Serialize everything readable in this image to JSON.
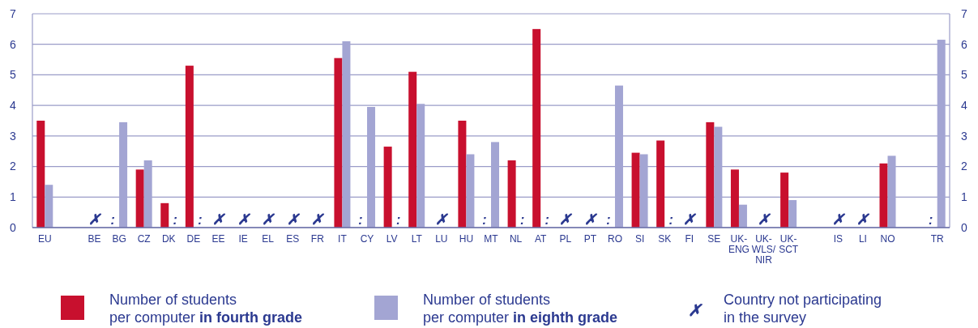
{
  "chart_data": {
    "type": "bar",
    "categories": [
      "EU",
      null,
      "BE",
      "BG",
      "CZ",
      "DK",
      "DE",
      "EE",
      "IE",
      "EL",
      "ES",
      "FR",
      "IT",
      "CY",
      "LV",
      "LT",
      "LU",
      "HU",
      "MT",
      "NL",
      "AT",
      "PL",
      "PT",
      "RO",
      "SI",
      "SK",
      "FI",
      "SE",
      "UK-ENG",
      "UK-WLS/NIR",
      "UK-SCT",
      null,
      "IS",
      "LI",
      "NO",
      null,
      "TR"
    ],
    "series": [
      {
        "name": "Number of students per computer in fourth grade",
        "color": "#c8102e",
        "values": [
          3.5,
          null,
          null,
          null,
          1.9,
          0.8,
          5.3,
          null,
          null,
          null,
          null,
          null,
          5.55,
          null,
          2.65,
          5.1,
          null,
          3.5,
          null,
          2.2,
          6.5,
          null,
          null,
          null,
          2.45,
          2.85,
          null,
          3.45,
          1.9,
          null,
          1.8,
          null,
          null,
          null,
          2.1,
          null,
          null
        ]
      },
      {
        "name": "Number of students per computer in eighth grade",
        "color": "#a3a5d3",
        "values": [
          1.4,
          null,
          null,
          3.45,
          2.2,
          null,
          null,
          null,
          null,
          null,
          null,
          null,
          6.1,
          3.95,
          null,
          4.05,
          null,
          2.4,
          2.8,
          null,
          null,
          null,
          null,
          4.65,
          2.4,
          null,
          null,
          3.3,
          0.75,
          null,
          0.9,
          null,
          null,
          null,
          2.35,
          null,
          6.15
        ]
      }
    ],
    "ylim": [
      0,
      7
    ],
    "yticks": [
      0,
      1,
      2,
      3,
      4,
      5,
      6,
      7
    ],
    "y2lim": [
      0,
      7
    ],
    "y2ticks": [
      0,
      1,
      2,
      3,
      4,
      5,
      6,
      7
    ],
    "grid": "y",
    "legend": "bottom",
    "annotations": [
      {
        "text": ":",
        "x": "BG",
        "y": 0
      },
      {
        "text": ":",
        "x": "DK",
        "y": 0
      },
      {
        "text": ":",
        "x": "DE",
        "y": 0
      },
      {
        "text": ":",
        "x": "CY",
        "y": 0
      },
      {
        "text": ":",
        "x": "LV",
        "y": 0
      },
      {
        "text": ":",
        "x": "MT",
        "y": 0
      },
      {
        "text": ":",
        "x": "NL",
        "y": 0
      },
      {
        "text": ":",
        "x": "AT",
        "y": 0
      },
      {
        "text": ":",
        "x": "RO",
        "y": 0
      },
      {
        "text": ":",
        "x": "SK",
        "y": 0
      },
      {
        "text": ":",
        "x": "TR",
        "y": 0
      },
      "✗",
      "✗",
      "✗",
      "✗",
      "✗",
      "✗",
      "✗",
      "✗",
      "✗",
      "✗",
      "✗",
      "✗",
      "✗",
      "Country not participating in the survey"
    ]
  }
}
